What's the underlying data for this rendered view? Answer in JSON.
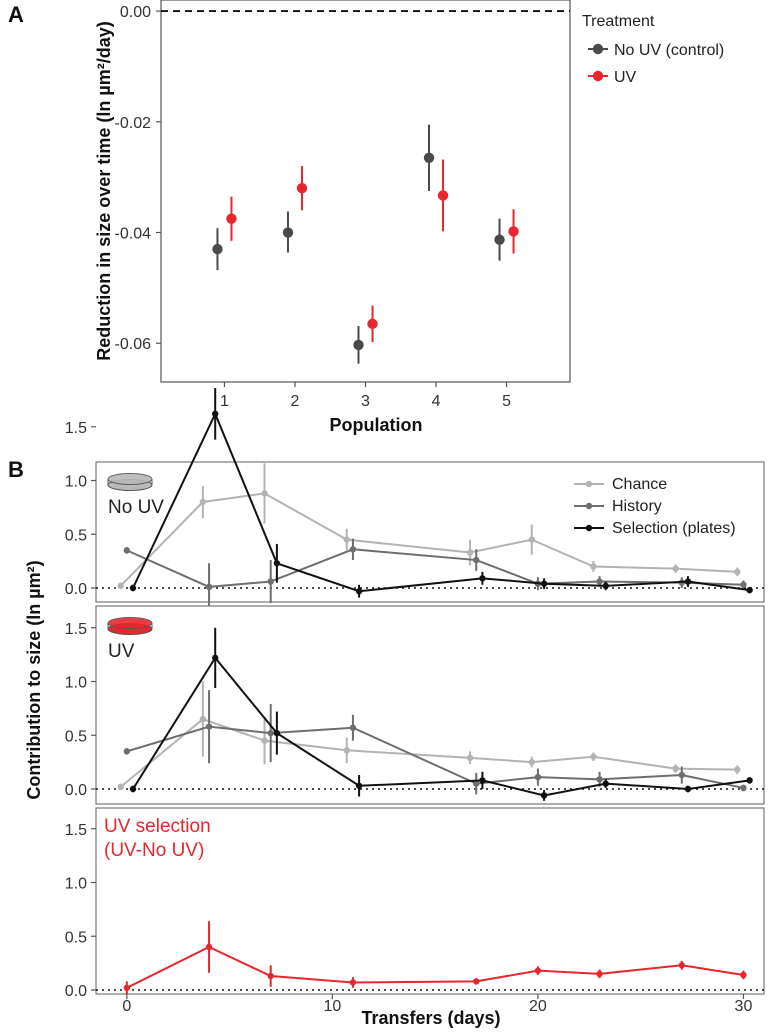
{
  "chart_data": [
    {
      "panel": "A",
      "type": "scatter",
      "xlabel": "Population",
      "ylabel": "Reduction in size over time (ln µm²/day)",
      "categories": [
        "1",
        "2",
        "3",
        "4",
        "5"
      ],
      "ylim": [
        -0.067,
        0.002
      ],
      "yticks": [
        "0.00",
        "-0.02",
        "-0.04",
        "-0.06"
      ],
      "yticks_values": [
        0,
        -0.02,
        -0.04,
        -0.06
      ],
      "reference_line": 0,
      "legend_title": "Treatment",
      "legend_position": "right",
      "series": [
        {
          "name": "No UV (control)",
          "color": "#4a4a4a",
          "values": [
            -0.043,
            -0.04,
            -0.0603,
            -0.0265,
            -0.0413
          ],
          "lower": [
            -0.0468,
            -0.0436,
            -0.0637,
            -0.0325,
            -0.0451
          ],
          "upper": [
            -0.0392,
            -0.0362,
            -0.0569,
            -0.0205,
            -0.0375
          ]
        },
        {
          "name": "UV",
          "color": "#e8262d",
          "values": [
            -0.0375,
            -0.032,
            -0.0565,
            -0.0333,
            -0.0398
          ],
          "lower": [
            -0.0415,
            -0.036,
            -0.0598,
            -0.0398,
            -0.0438
          ],
          "upper": [
            -0.0335,
            -0.028,
            -0.0532,
            -0.0268,
            -0.0358
          ]
        }
      ]
    },
    {
      "panel": "B",
      "type": "line",
      "xlabel": "Transfers (days)",
      "ylabel": "Contribution to size (ln µm²)",
      "xlim": [
        -1.5,
        31
      ],
      "xticks": [
        "0",
        "10",
        "20",
        "30"
      ],
      "xticks_values": [
        0,
        10,
        20,
        30
      ],
      "ylim": [
        -0.15,
        1.88
      ],
      "yticks": [
        "0.0",
        "0.5",
        "1.0",
        "1.5"
      ],
      "yticks_values": [
        0,
        0.5,
        1.0,
        1.5
      ],
      "legend_position": "top-right",
      "legend_entries": [
        {
          "name": "Chance",
          "color": "#b3b3b3"
        },
        {
          "name": "History",
          "color": "#6e6e6e"
        },
        {
          "name": "Selection (plates)",
          "color": "#111111"
        }
      ],
      "facets": [
        {
          "label": "No UV",
          "label_color": "#222222",
          "dish_color": "#b9b9b9",
          "series": [
            {
              "name": "Chance",
              "color": "#b3b3b3",
              "x": [
                -0.3,
                3.7,
                6.7,
                10.7,
                16.7,
                19.7,
                22.7,
                26.7,
                29.7
              ],
              "y": [
                0.02,
                0.8,
                0.88,
                0.45,
                0.33,
                0.45,
                0.2,
                0.18,
                0.15
              ],
              "err": [
                0.03,
                0.15,
                0.28,
                0.1,
                0.12,
                0.14,
                0.05,
                0.04,
                0.04
              ]
            },
            {
              "name": "History",
              "color": "#6e6e6e",
              "x": [
                0.0,
                4.0,
                7.0,
                11.0,
                17.0,
                20.0,
                23.0,
                27.0,
                30.0
              ],
              "y": [
                0.35,
                0.01,
                0.06,
                0.36,
                0.26,
                0.04,
                0.06,
                0.05,
                0.03
              ],
              "err": [
                0.03,
                0.22,
                0.2,
                0.1,
                0.1,
                0.06,
                0.05,
                0.05,
                0.04
              ]
            },
            {
              "name": "Selection (plates)",
              "color": "#111111",
              "x": [
                0.3,
                4.3,
                7.3,
                11.3,
                17.3,
                20.3,
                23.3,
                27.3,
                30.3
              ],
              "y": [
                0.0,
                1.62,
                0.23,
                -0.03,
                0.09,
                0.04,
                0.02,
                0.06,
                -0.02
              ],
              "err": [
                0.03,
                0.24,
                0.18,
                0.06,
                0.06,
                0.05,
                0.04,
                0.05,
                0.03
              ]
            }
          ]
        },
        {
          "label": "UV",
          "label_color": "#222222",
          "dish_color": "#e8262d",
          "series": [
            {
              "name": "Chance",
              "color": "#b3b3b3",
              "x": [
                -0.3,
                3.7,
                6.7,
                10.7,
                16.7,
                19.7,
                22.7,
                26.7,
                29.7
              ],
              "y": [
                0.02,
                0.65,
                0.45,
                0.36,
                0.29,
                0.25,
                0.3,
                0.19,
                0.18
              ],
              "err": [
                0.03,
                0.35,
                0.22,
                0.12,
                0.06,
                0.05,
                0.04,
                0.04,
                0.04
              ]
            },
            {
              "name": "History",
              "color": "#6e6e6e",
              "x": [
                0.0,
                4.0,
                7.0,
                11.0,
                17.0,
                20.0,
                23.0,
                27.0,
                30.0
              ],
              "y": [
                0.35,
                0.58,
                0.52,
                0.57,
                0.05,
                0.11,
                0.09,
                0.13,
                0.01
              ],
              "err": [
                0.03,
                0.34,
                0.27,
                0.12,
                0.1,
                0.08,
                0.07,
                0.08,
                0.03
              ]
            },
            {
              "name": "Selection (plates)",
              "color": "#111111",
              "x": [
                0.3,
                4.3,
                7.3,
                11.3,
                17.3,
                20.3,
                23.3,
                27.3,
                30.3
              ],
              "y": [
                0.0,
                1.22,
                0.52,
                0.03,
                0.08,
                -0.06,
                0.05,
                0.0,
                0.08
              ],
              "err": [
                0.03,
                0.28,
                0.2,
                0.1,
                0.08,
                0.05,
                0.04,
                0.03,
                0.03
              ]
            }
          ]
        },
        {
          "label": "UV selection\n(UV-No UV)",
          "label_color": "#e8262d",
          "series": [
            {
              "name": "UV selection",
              "color": "#e8262d",
              "x": [
                0,
                4,
                7,
                11,
                17,
                20,
                23,
                27,
                30
              ],
              "y": [
                0.02,
                0.4,
                0.13,
                0.07,
                0.08,
                0.18,
                0.15,
                0.23,
                0.14
              ],
              "err": [
                0.06,
                0.24,
                0.1,
                0.05,
                0.03,
                0.04,
                0.04,
                0.04,
                0.04
              ]
            }
          ]
        }
      ]
    }
  ]
}
